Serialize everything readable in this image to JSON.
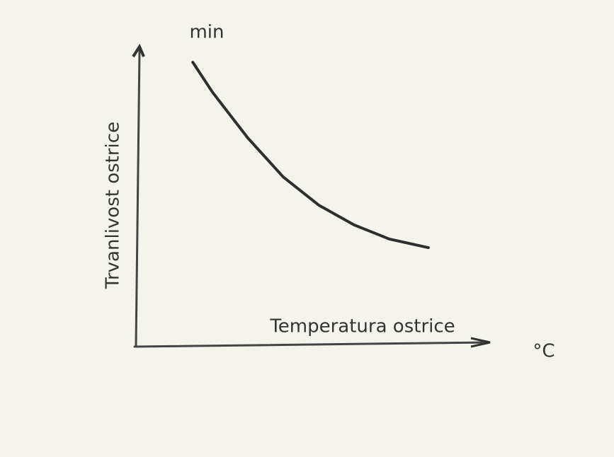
{
  "chart_data": {
    "type": "line",
    "y_label": "Trvanlivost ostrice",
    "y_unit": "min",
    "x_label": "Temperatura ostrice",
    "x_unit": "°C",
    "x": [
      1.56,
      2.12,
      3.13,
      4.14,
      5.15,
      6.16,
      7.17,
      8.28
    ],
    "values": [
      9.57,
      8.56,
      7.01,
      5.69,
      4.74,
      4.07,
      3.59,
      3.3
    ],
    "color": "#2e2e2e",
    "xlim": [
      0,
      10
    ],
    "ylim": [
      0,
      10
    ]
  }
}
